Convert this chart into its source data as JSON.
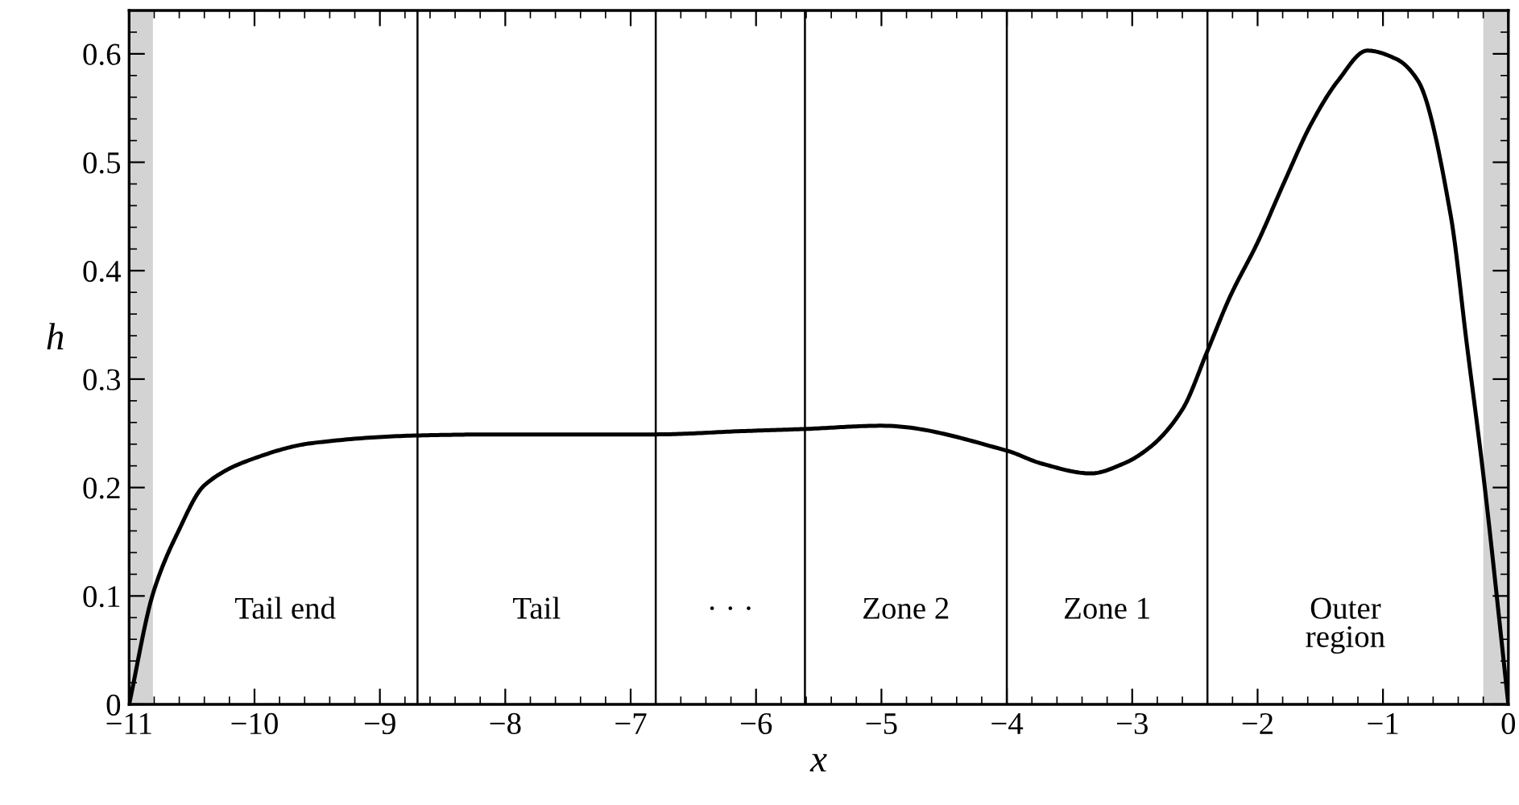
{
  "chart_data": {
    "type": "line",
    "xlabel": "x",
    "ylabel": "h",
    "xlim": [
      -11,
      0
    ],
    "ylim": [
      0,
      0.64
    ],
    "xticks": [
      {
        "value": -11,
        "label": "−11"
      },
      {
        "value": -10,
        "label": "−10"
      },
      {
        "value": -9,
        "label": "−9"
      },
      {
        "value": -8,
        "label": "−8"
      },
      {
        "value": -7,
        "label": "−7"
      },
      {
        "value": -6,
        "label": "−6"
      },
      {
        "value": -5,
        "label": "−5"
      },
      {
        "value": -4,
        "label": "−4"
      },
      {
        "value": -3,
        "label": "−3"
      },
      {
        "value": -2,
        "label": "−2"
      },
      {
        "value": -1,
        "label": "−1"
      },
      0
    ],
    "yticks": [
      0,
      0.1,
      0.2,
      0.3,
      0.4,
      0.5,
      0.6
    ],
    "grid": false,
    "marker": "none",
    "line_style": "solid",
    "series": [
      {
        "color": "#000000",
        "x": [
          -11,
          -10.81,
          -10.61,
          -10.4,
          -10.0,
          -9.54,
          -8.7,
          -8.09,
          -6.8,
          -6.12,
          -5.61,
          -5.0,
          -4.0,
          -3.72,
          -3.33,
          -3.07,
          -2.86,
          -2.6,
          -2.4,
          -2.22,
          -2.0,
          -1.79,
          -1.57,
          -1.36,
          -1.125,
          -0.89,
          -0.72,
          -0.46,
          -0.33,
          -0.2,
          0
        ],
        "values": [
          0,
          0.102,
          0.159,
          0.202,
          0.227,
          0.241,
          0.248,
          0.249,
          0.249,
          0.252,
          0.254,
          0.257,
          0.234,
          0.222,
          0.213,
          0.222,
          0.237,
          0.272,
          0.326,
          0.376,
          0.426,
          0.481,
          0.536,
          0.575,
          0.603,
          0.595,
          0.575,
          0.451,
          0.331,
          0.212,
          0
        ]
      }
    ],
    "bands": [
      {
        "axis": "x",
        "from": -11,
        "to": -10.81,
        "color": "#d3d3d3"
      },
      {
        "axis": "x",
        "from": -0.2,
        "to": 0,
        "color": "#d3d3d3"
      }
    ],
    "ref_lines": [
      {
        "axis": "x",
        "value": -8.7,
        "color": "#000000"
      },
      {
        "axis": "x",
        "value": -6.8,
        "color": "#000000"
      },
      {
        "axis": "x",
        "value": -5.61,
        "color": "#000000"
      },
      {
        "axis": "x",
        "value": -4.0,
        "color": "#000000"
      },
      {
        "axis": "x",
        "value": -2.4,
        "color": "#000000"
      }
    ],
    "annotations": [
      "Tail end",
      "Tail",
      "· · ·",
      "Zone 2",
      "Zone 1",
      "Outer\nregion"
    ]
  }
}
